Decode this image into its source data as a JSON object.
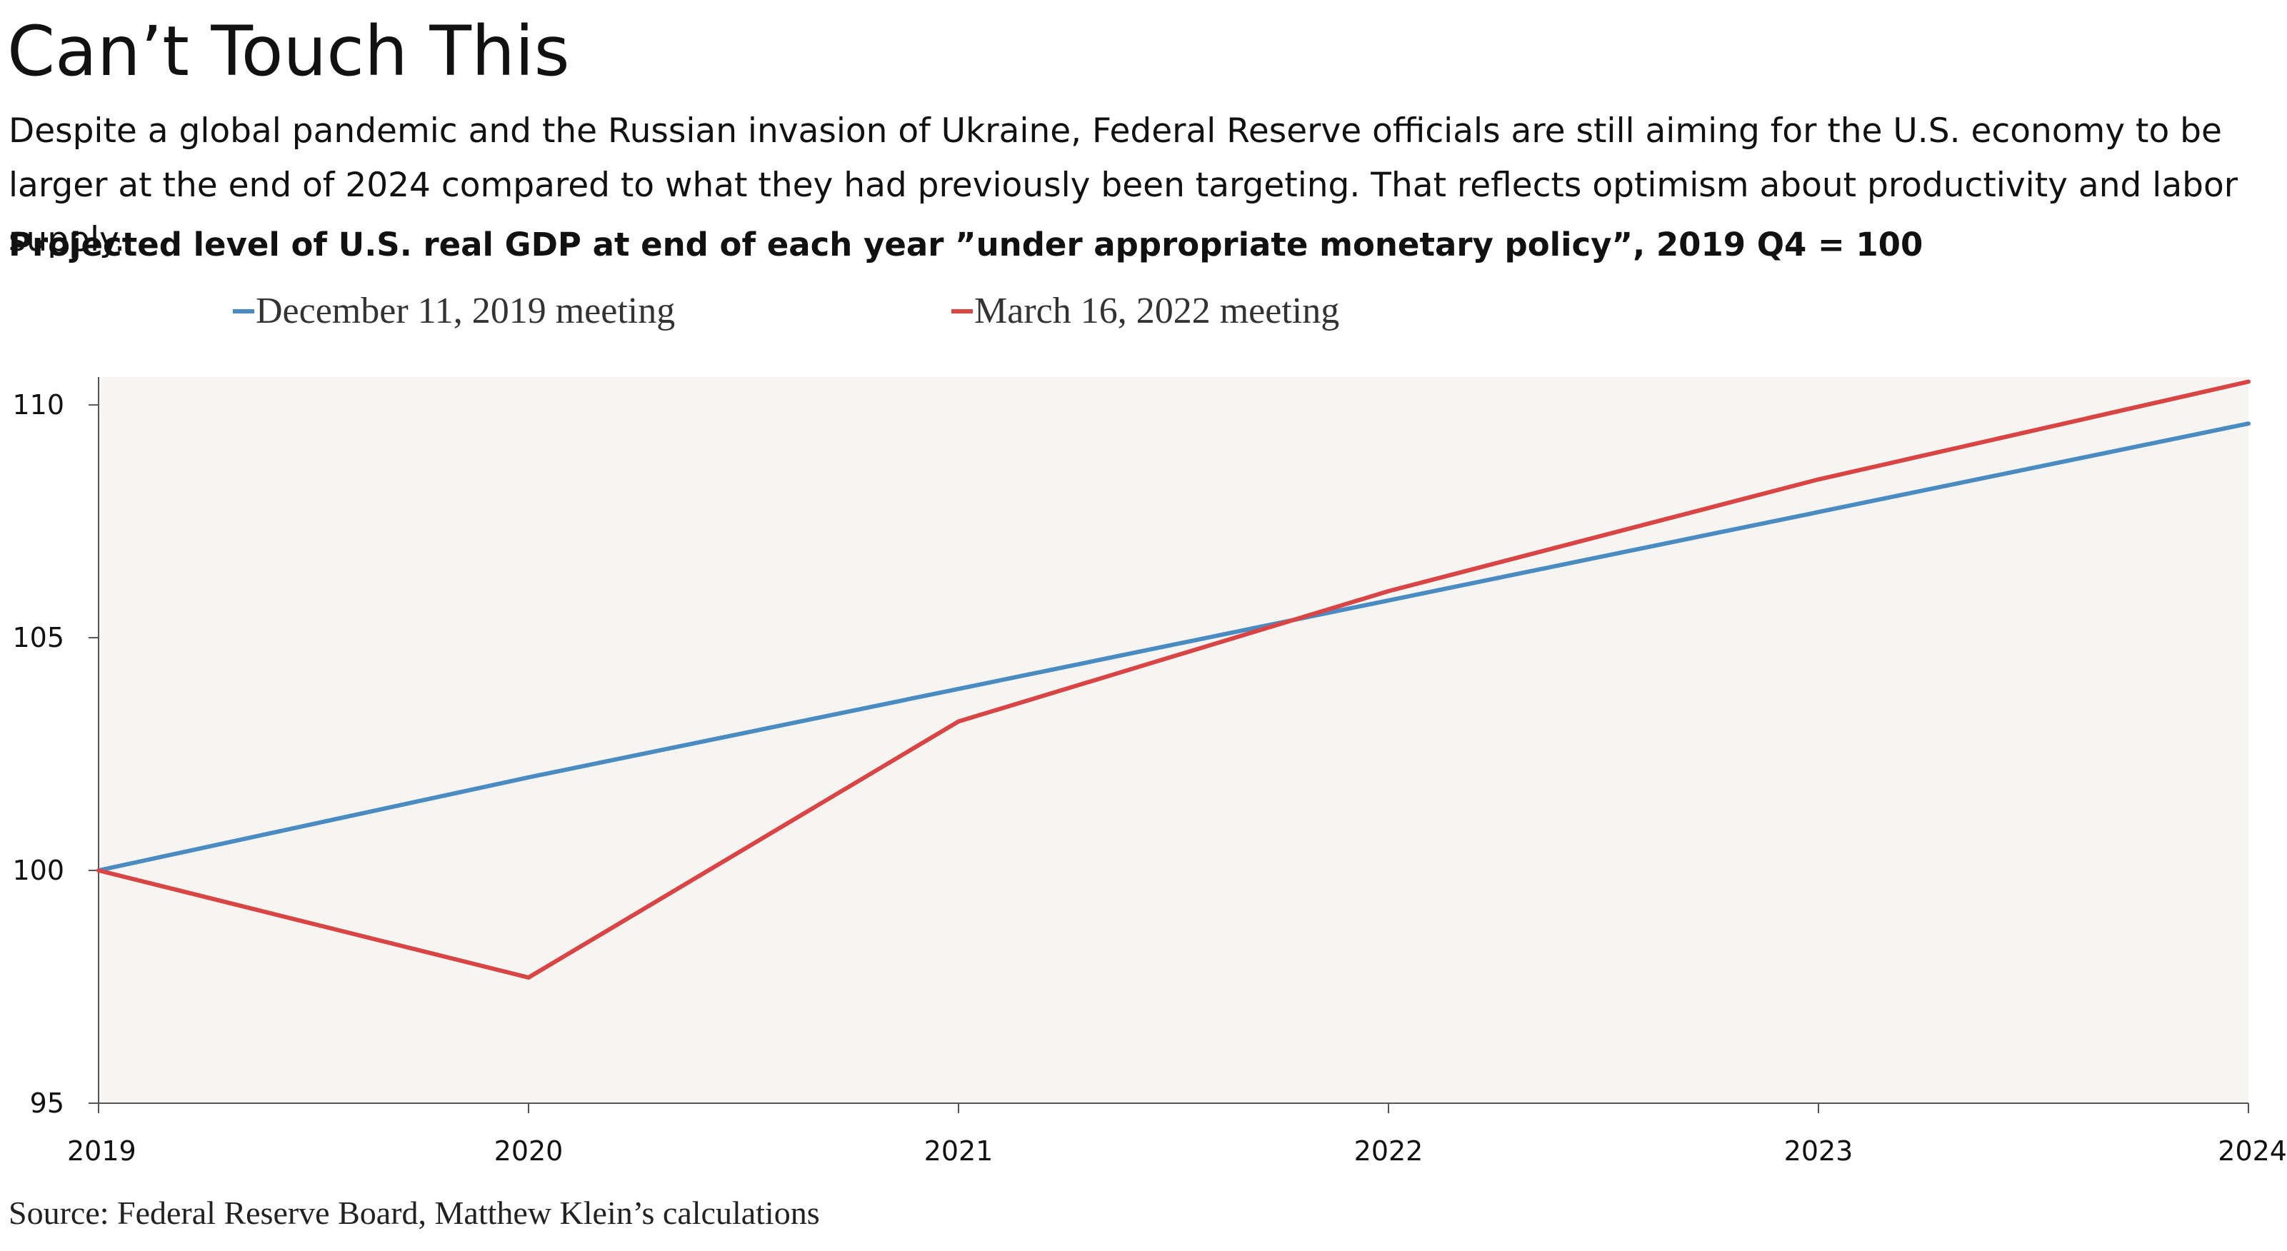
{
  "title": "Can’t Touch This",
  "subtitle": "Despite a global pandemic and the Russian invasion of Ukraine, Federal Reserve officials are still aiming for the U.S. economy to be larger at the end of 2024 compared to what they had previously been targeting. That reflects optimism about productivity and labor supply.",
  "source": "Source: Federal Reserve Board, Matthew Klein’s calculations",
  "chart_data": {
    "type": "line",
    "title": "Projected level of U.S. real GDP at end of each year ”under appropriate monetary policy”, 2019 Q4 = 100",
    "xlabel": "",
    "ylabel": "",
    "x": [
      2019,
      2020,
      2021,
      2022,
      2023,
      2024
    ],
    "x_tick_labels": [
      "2019",
      "2020",
      "2021",
      "2022",
      "2023",
      "2024"
    ],
    "xlim": [
      2019,
      2024
    ],
    "ylim": [
      95,
      110.6
    ],
    "y_ticks": [
      95,
      100,
      105,
      110
    ],
    "y_tick_labels": [
      "95",
      "100",
      "105",
      "110"
    ],
    "grid": false,
    "legend_position": "top",
    "series": [
      {
        "name": "December 11, 2019 meeting",
        "color": "#4a8cc2",
        "values": [
          100,
          102.0,
          103.9,
          105.8,
          107.7,
          109.6
        ]
      },
      {
        "name": "March 16, 2022 meeting",
        "color": "#d94545",
        "values": [
          100,
          97.7,
          103.2,
          106.0,
          108.4,
          110.5
        ]
      }
    ],
    "plot_background": "#f6f5f2",
    "axis_color": "#555555"
  }
}
